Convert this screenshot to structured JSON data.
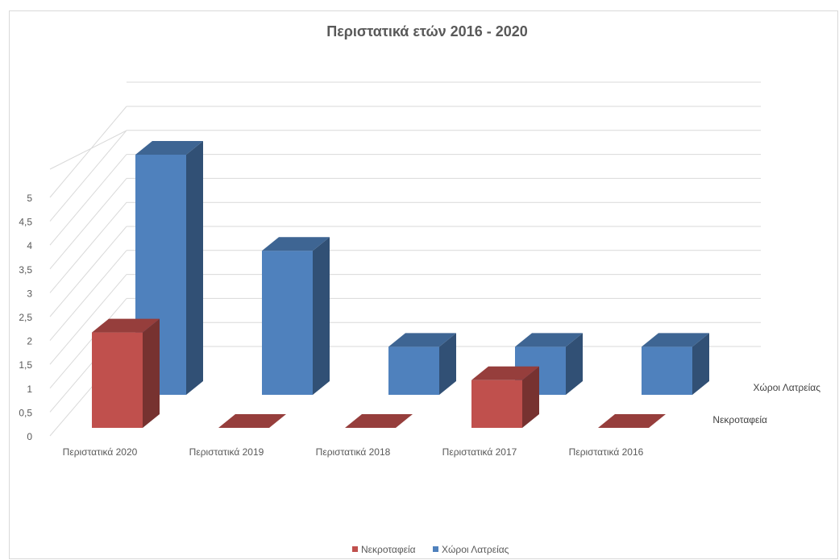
{
  "chart_data": {
    "type": "bar",
    "variant": "3d-column",
    "title": "Περιστατικά  ετών 2016 - 2020",
    "categories": [
      "Περιστατικά 2020",
      "Περιστατικά 2019",
      "Περιστατικά 2018",
      "Περιστατικά 2017",
      "Περιστατικά 2016"
    ],
    "series": [
      {
        "name": "Νεκροταφεία",
        "values": [
          2,
          0,
          0,
          1,
          0
        ],
        "color": "#c0504d"
      },
      {
        "name": "Χώροι Λατρείας",
        "values": [
          5,
          3,
          1,
          1,
          1
        ],
        "color": "#4f81bd"
      }
    ],
    "yticks": [
      "0",
      "0,5",
      "1",
      "1,5",
      "2",
      "2,5",
      "3",
      "3,5",
      "4",
      "4,5",
      "5"
    ],
    "ylim": [
      0,
      5
    ],
    "grid": true,
    "legend_position": "bottom"
  }
}
